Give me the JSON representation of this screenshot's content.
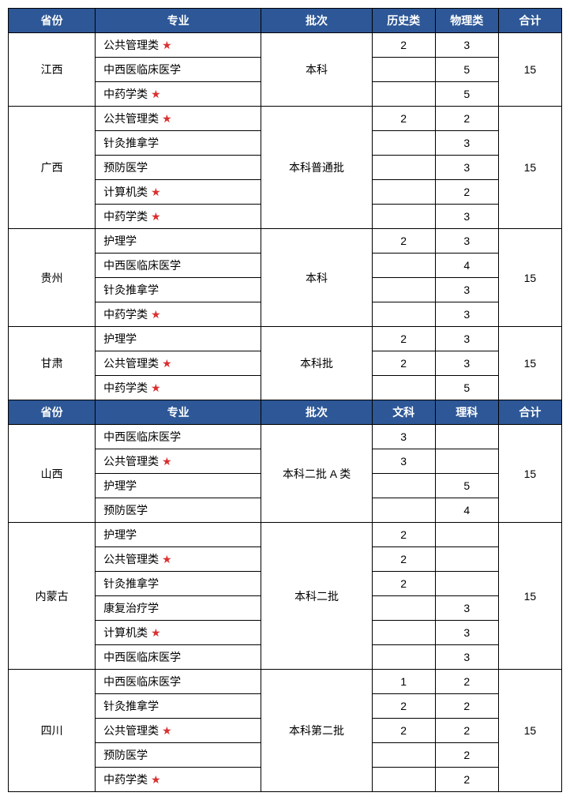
{
  "headers1": {
    "province": "省份",
    "major": "专业",
    "batch": "批次",
    "col1": "历史类",
    "col2": "物理类",
    "total": "合计"
  },
  "headers2": {
    "province": "省份",
    "major": "专业",
    "batch": "批次",
    "col1": "文科",
    "col2": "理科",
    "total": "合计"
  },
  "section1": [
    {
      "province": "江西",
      "batch": "本科",
      "total": "15",
      "rows": [
        {
          "major": "公共管理类",
          "star": true,
          "c1": "2",
          "c2": "3"
        },
        {
          "major": "中西医临床医学",
          "star": false,
          "c1": "",
          "c2": "5"
        },
        {
          "major": "中药学类",
          "star": true,
          "c1": "",
          "c2": "5"
        }
      ]
    },
    {
      "province": "广西",
      "batch": "本科普通批",
      "total": "15",
      "rows": [
        {
          "major": "公共管理类",
          "star": true,
          "c1": "2",
          "c2": "2"
        },
        {
          "major": "针灸推拿学",
          "star": false,
          "c1": "",
          "c2": "3"
        },
        {
          "major": "预防医学",
          "star": false,
          "c1": "",
          "c2": "3"
        },
        {
          "major": "计算机类",
          "star": true,
          "c1": "",
          "c2": "2"
        },
        {
          "major": "中药学类",
          "star": true,
          "c1": "",
          "c2": "3"
        }
      ]
    },
    {
      "province": "贵州",
      "batch": "本科",
      "total": "15",
      "rows": [
        {
          "major": "护理学",
          "star": false,
          "c1": "2",
          "c2": "3"
        },
        {
          "major": "中西医临床医学",
          "star": false,
          "c1": "",
          "c2": "4"
        },
        {
          "major": "针灸推拿学",
          "star": false,
          "c1": "",
          "c2": "3"
        },
        {
          "major": "中药学类",
          "star": true,
          "c1": "",
          "c2": "3"
        }
      ]
    },
    {
      "province": "甘肃",
      "batch": "本科批",
      "total": "15",
      "rows": [
        {
          "major": "护理学",
          "star": false,
          "c1": "2",
          "c2": "3"
        },
        {
          "major": "公共管理类",
          "star": true,
          "c1": "2",
          "c2": "3"
        },
        {
          "major": "中药学类",
          "star": true,
          "c1": "",
          "c2": "5"
        }
      ]
    }
  ],
  "section2": [
    {
      "province": "山西",
      "batch": "本科二批 A 类",
      "total": "15",
      "rows": [
        {
          "major": "中西医临床医学",
          "star": false,
          "c1": "3",
          "c2": ""
        },
        {
          "major": "公共管理类",
          "star": true,
          "c1": "3",
          "c2": ""
        },
        {
          "major": "护理学",
          "star": false,
          "c1": "",
          "c2": "5"
        },
        {
          "major": "预防医学",
          "star": false,
          "c1": "",
          "c2": "4"
        }
      ]
    },
    {
      "province": "内蒙古",
      "batch": "本科二批",
      "total": "15",
      "rows": [
        {
          "major": "护理学",
          "star": false,
          "c1": "2",
          "c2": ""
        },
        {
          "major": "公共管理类",
          "star": true,
          "c1": "2",
          "c2": ""
        },
        {
          "major": "针灸推拿学",
          "star": false,
          "c1": "2",
          "c2": ""
        },
        {
          "major": "康复治疗学",
          "star": false,
          "c1": "",
          "c2": "3"
        },
        {
          "major": "计算机类",
          "star": true,
          "c1": "",
          "c2": "3"
        },
        {
          "major": "中西医临床医学",
          "star": false,
          "c1": "",
          "c2": "3"
        }
      ]
    },
    {
      "province": "四川",
      "batch": "本科第二批",
      "total": "15",
      "rows": [
        {
          "major": "中西医临床医学",
          "star": false,
          "c1": "1",
          "c2": "2"
        },
        {
          "major": "针灸推拿学",
          "star": false,
          "c1": "2",
          "c2": "2"
        },
        {
          "major": "公共管理类",
          "star": true,
          "c1": "2",
          "c2": "2"
        },
        {
          "major": "预防医学",
          "star": false,
          "c1": "",
          "c2": "2"
        },
        {
          "major": "中药学类",
          "star": true,
          "c1": "",
          "c2": "2"
        }
      ]
    }
  ],
  "colors": {
    "header_bg": "#2d5796",
    "header_text": "#ffffff",
    "border": "#000000",
    "star": "#d93030",
    "background": "#ffffff"
  }
}
